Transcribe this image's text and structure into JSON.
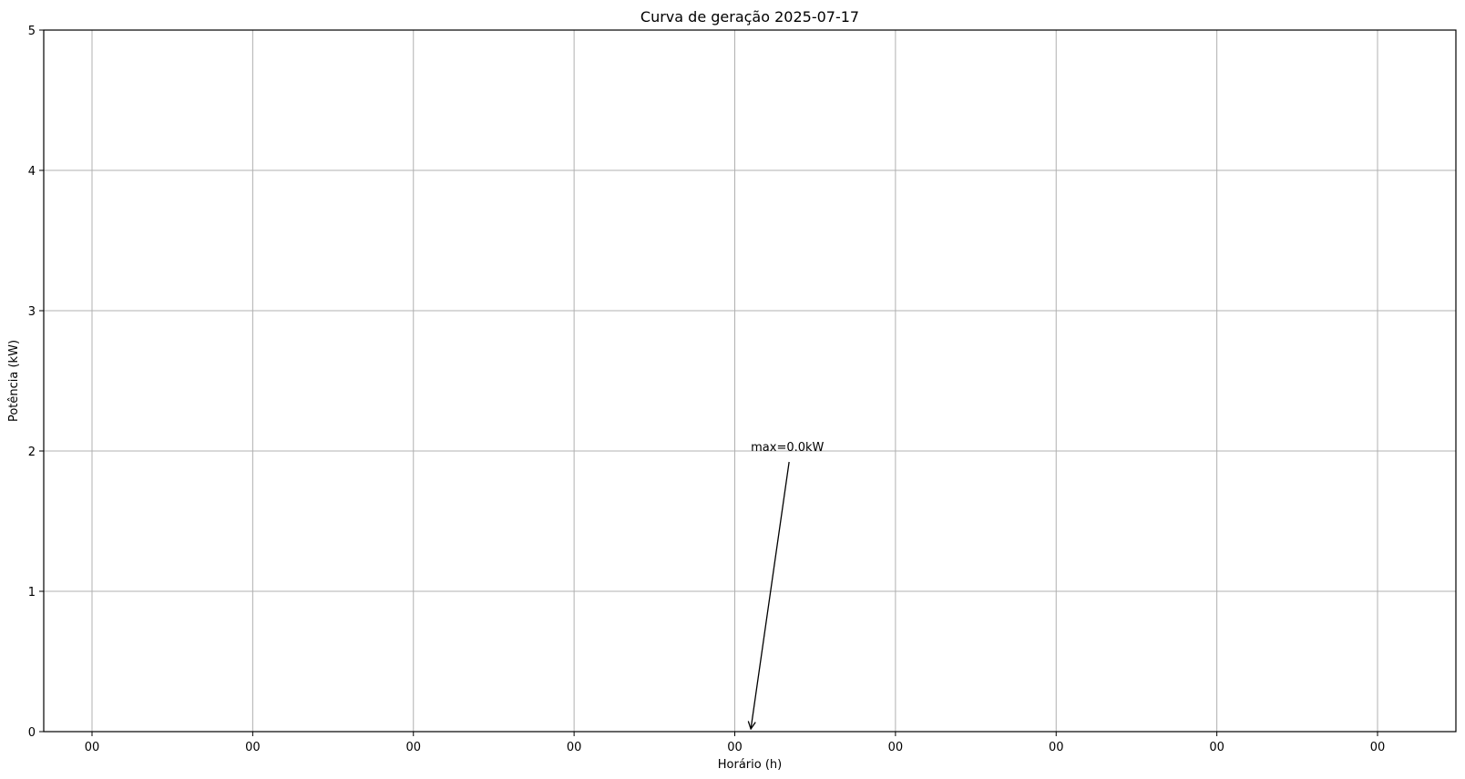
{
  "chart_data": {
    "type": "line",
    "title": "Curva de geração 2025-07-17",
    "xlabel": "Horário (h)",
    "ylabel": "Potência (kW)",
    "ylim": [
      0,
      5
    ],
    "yticks": [
      "0",
      "1",
      "2",
      "3",
      "4",
      "5"
    ],
    "xticks": [
      "00",
      "00",
      "00",
      "00",
      "00",
      "00",
      "00",
      "00",
      "00"
    ],
    "grid": true,
    "series": [
      {
        "values": [
          0,
          0,
          0,
          0,
          0,
          0,
          0,
          0,
          0
        ]
      }
    ],
    "annotations": [
      {
        "text": "max=0.0kW",
        "x_index": 4.1,
        "y": 0,
        "text_y": 2
      }
    ],
    "colors": {
      "grid": "#b0b0b0",
      "axis": "#000000"
    }
  }
}
